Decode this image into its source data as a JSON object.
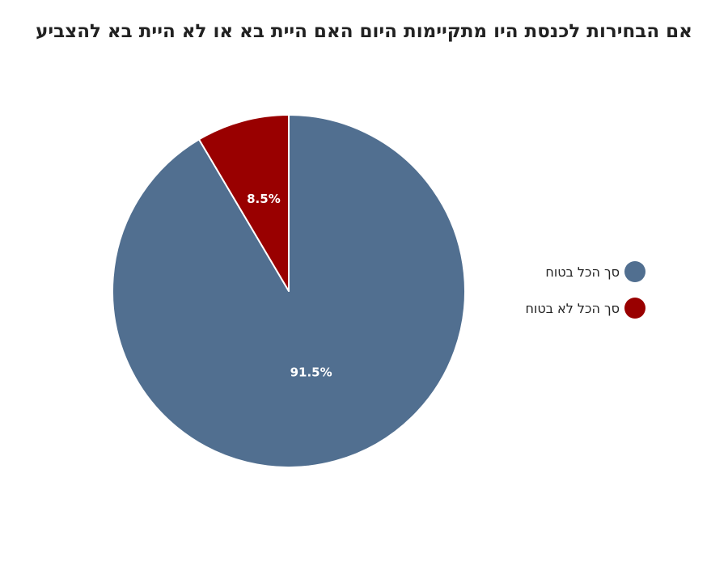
{
  "chart_data": {
    "type": "pie",
    "title": "אם הבחירות לכנסת היו מתקיימות היום האם היית בא או לא היית בא להצביע",
    "series": [
      {
        "name": "סך הכל בטוח",
        "value": 91.5,
        "label": "91.5%",
        "color": "#516F90"
      },
      {
        "name": "סך הכל לא בטוח",
        "value": 8.5,
        "label": "8.5%",
        "color": "#990000"
      }
    ],
    "legend_position": "right",
    "start": "top",
    "direction": "clockwise"
  }
}
